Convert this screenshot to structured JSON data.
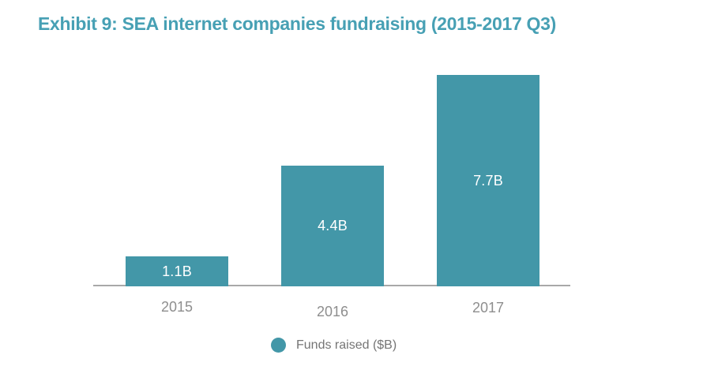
{
  "title": "Exhibit 9: SEA internet companies fundraising (2015-2017 Q3)",
  "colors": {
    "title_teal": "#47A0B4",
    "bar_teal": "#4397A8",
    "axis_gray": "#A8A8A8",
    "year_label_gray": "#8E8E8E",
    "legend_text_gray": "#757575",
    "bar_value_text": "#FFFFFF",
    "background": "#FFFFFF"
  },
  "legend": {
    "marker_icon": "circle-icon",
    "label": "Funds raised ($B)"
  },
  "chart_data": {
    "type": "bar",
    "title": "Exhibit 9: SEA internet companies fundraising (2015-2017 Q3)",
    "categories": [
      "2015",
      "2016",
      "2017"
    ],
    "series": [
      {
        "name": "Funds raised ($B)",
        "values": [
          1.1,
          4.4,
          7.7
        ]
      }
    ],
    "bar_labels": [
      "1.1B",
      "4.4B",
      "7.7B"
    ],
    "xlabel": "",
    "ylabel": "",
    "ylim": [
      0,
      7.7
    ],
    "grid": "off",
    "y_axis_visible": false,
    "legend_position": "bottom-center",
    "bar_color": "#4397A8"
  }
}
